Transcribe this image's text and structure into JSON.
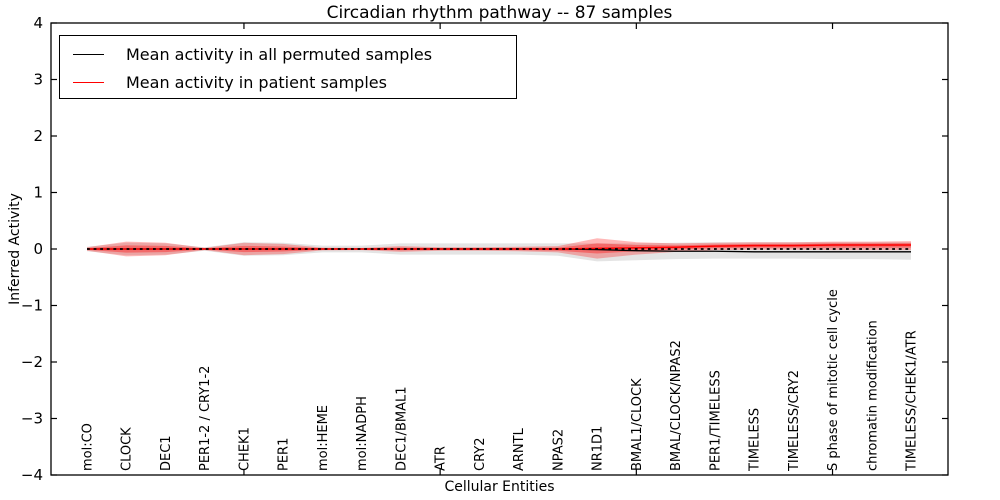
{
  "figure": {
    "title": "Circadian rhythm pathway -- 87 samples",
    "xlabel": "Cellular Entities",
    "ylabel": "Inferred Activity"
  },
  "legend": {
    "items": [
      {
        "label": "Mean activity in all permuted samples",
        "color": "#000000"
      },
      {
        "label": "Mean activity in patient samples",
        "color": "#ff0000"
      }
    ]
  },
  "chart_data": {
    "type": "line",
    "title": "Circadian rhythm pathway -- 87 samples",
    "xlabel": "Cellular Entities",
    "ylabel": "Inferred Activity",
    "ylim": [
      -4,
      4
    ],
    "yticks": [
      4,
      3,
      2,
      1,
      0,
      -1,
      -2,
      -3,
      -4
    ],
    "ytick_labels": [
      "4",
      "3",
      "2",
      "1",
      "0",
      "−1",
      "−2",
      "−3",
      "−4"
    ],
    "grid": false,
    "legend_position": "upper left",
    "major_xtick_indices": [
      4,
      9,
      14,
      19
    ],
    "categories": [
      "mol:CO",
      "CLOCK",
      "DEC1",
      "PER1-2 / CRY1-2",
      "CHEK1",
      "PER1",
      "mol:HEME",
      "mol:NADPH",
      "DEC1/BMAL1",
      "ATR",
      "CRY2",
      "ARNTL",
      "NPAS2",
      "NR1D1",
      "BMAL1/CLOCK",
      "BMAL/CLOCK/NPAS2",
      "PER1/TIMELESS",
      "TIMELESS",
      "TIMELESS/CRY2",
      "S phase of mitotic cell cycle",
      "chromatin modification",
      "TIMELESS/CHEK1/ATR"
    ],
    "series": [
      {
        "name": "Mean activity in all permuted samples",
        "kind": "line",
        "color": "#000000",
        "values": [
          0,
          0,
          0,
          0,
          0,
          0,
          0,
          0,
          0,
          0,
          0,
          0,
          0,
          -0.01,
          -0.03,
          -0.04,
          -0.04,
          -0.05,
          -0.05,
          -0.05,
          -0.05,
          -0.05
        ]
      },
      {
        "name": "Mean activity in patient samples",
        "kind": "line",
        "color": "#ff0000",
        "values": [
          0,
          0,
          0,
          0,
          0,
          0,
          0,
          0,
          0,
          0,
          0,
          0,
          0,
          0.01,
          0.02,
          0.03,
          0.05,
          0.06,
          0.06,
          0.07,
          0.07,
          0.07
        ]
      },
      {
        "name": "Permuted samples spread",
        "kind": "band",
        "color": "#bbbbbb",
        "upper": [
          0.04,
          0.11,
          0.1,
          0.03,
          0.12,
          0.11,
          0.06,
          0.06,
          0.1,
          0.1,
          0.1,
          0.1,
          0.1,
          0.1,
          0.1,
          0.11,
          0.12,
          0.12,
          0.12,
          0.12,
          0.12,
          0.12
        ],
        "lower": [
          -0.04,
          -0.11,
          -0.1,
          -0.03,
          -0.12,
          -0.11,
          -0.06,
          -0.06,
          -0.1,
          -0.1,
          -0.1,
          -0.1,
          -0.12,
          -0.22,
          -0.2,
          -0.18,
          -0.17,
          -0.17,
          -0.17,
          -0.18,
          -0.18,
          -0.19
        ]
      },
      {
        "name": "Patient samples spread",
        "kind": "band",
        "color": "#ff0000",
        "upper": [
          0.03,
          0.13,
          0.11,
          0.02,
          0.11,
          0.09,
          0.025,
          0.02,
          0.05,
          0.03,
          0.03,
          0.04,
          0.05,
          0.19,
          0.12,
          0.1,
          0.11,
          0.12,
          0.12,
          0.13,
          0.13,
          0.14
        ],
        "lower": [
          -0.03,
          -0.13,
          -0.11,
          -0.02,
          -0.11,
          -0.09,
          -0.025,
          -0.02,
          -0.05,
          -0.03,
          -0.03,
          -0.04,
          -0.06,
          -0.17,
          -0.1,
          -0.05,
          -0.02,
          -0.01,
          -0.01,
          -0.02,
          -0.02,
          -0.02
        ]
      }
    ],
    "zero_line": {
      "y": 0,
      "style": "dotted",
      "color": "#000000"
    }
  }
}
